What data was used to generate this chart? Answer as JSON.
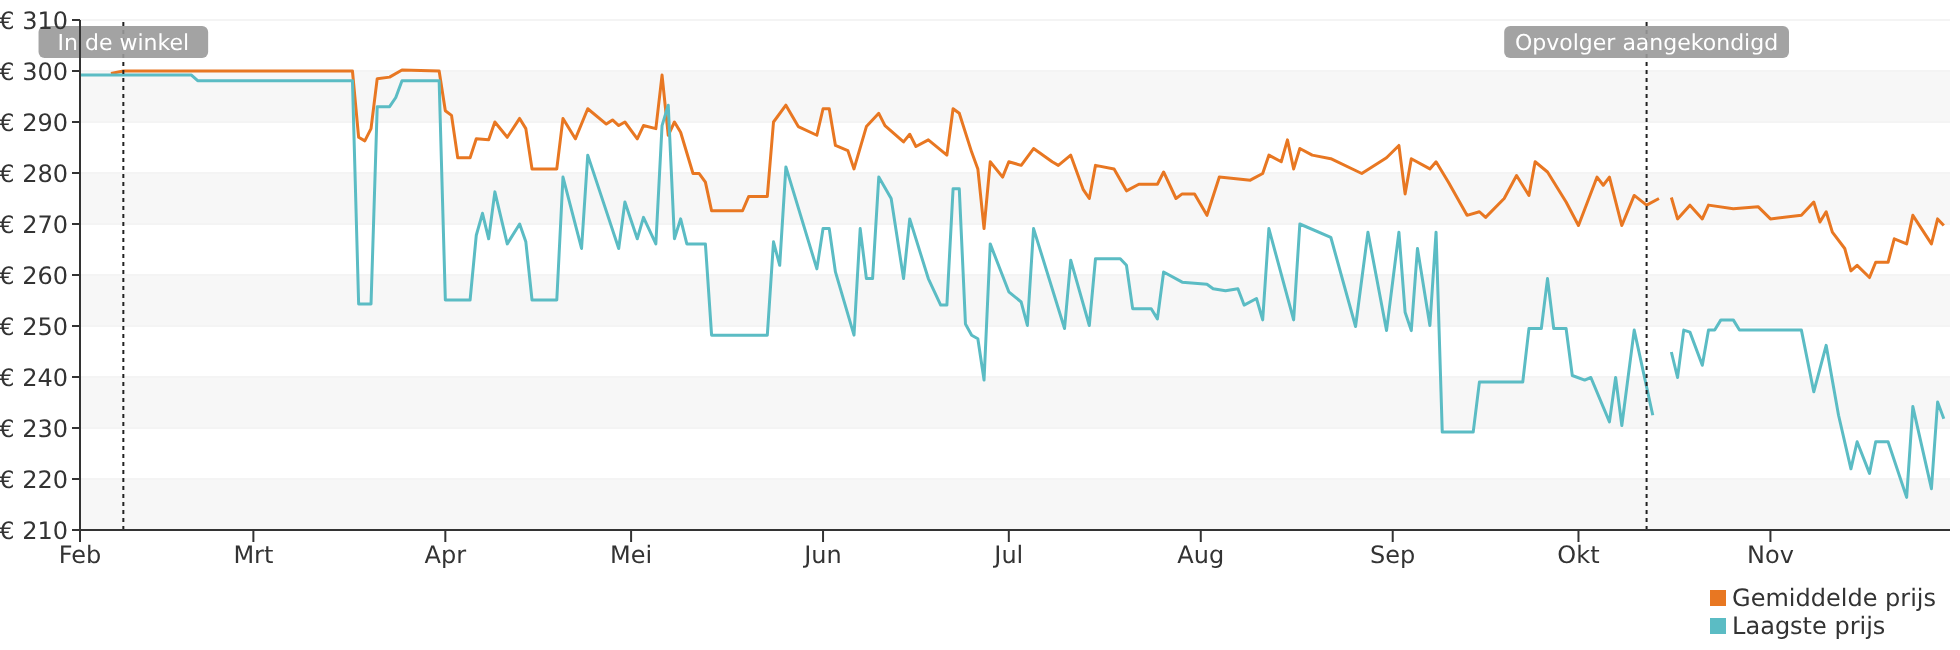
{
  "chart_data": {
    "type": "line",
    "xlim": [
      "--02-01",
      "--11-30"
    ],
    "xticks": [
      {
        "value": "--02-01",
        "label": "Feb"
      },
      {
        "value": "--03-01",
        "label": "Mrt"
      },
      {
        "value": "--04-01",
        "label": "Apr"
      },
      {
        "value": "--05-01",
        "label": "Mei"
      },
      {
        "value": "--06-01",
        "label": "Jun"
      },
      {
        "value": "--07-01",
        "label": "Jul"
      },
      {
        "value": "--08-01",
        "label": "Aug"
      },
      {
        "value": "--09-01",
        "label": "Sep"
      },
      {
        "value": "--10-01",
        "label": "Okt"
      },
      {
        "value": "--11-01",
        "label": "Nov"
      }
    ],
    "ylim": [
      210,
      310
    ],
    "yticks": [
      {
        "value": 210,
        "label": "€ 210"
      },
      {
        "value": 220,
        "label": "€ 220"
      },
      {
        "value": 230,
        "label": "€ 230"
      },
      {
        "value": 240,
        "label": "€ 240"
      },
      {
        "value": 250,
        "label": "€ 250"
      },
      {
        "value": 260,
        "label": "€ 260"
      },
      {
        "value": 270,
        "label": "€ 270"
      },
      {
        "value": 280,
        "label": "€ 280"
      },
      {
        "value": 290,
        "label": "€ 290"
      },
      {
        "value": 300,
        "label": "€ 300"
      },
      {
        "value": 310,
        "label": "€ 310"
      }
    ],
    "grid": "y",
    "legend": "bottom right",
    "marker": "none",
    "line_style": "solid",
    "ref_lines": [
      {
        "axis": "x",
        "value": "--02-08",
        "label": "In de winkel",
        "color": "#222222",
        "line_style": "dotted"
      },
      {
        "axis": "x",
        "value": "--10-12",
        "label": "Opvolger aangekondigd",
        "color": "#222222",
        "line_style": "dotted"
      }
    ],
    "series": [
      {
        "name": "Gemiddelde prijs",
        "color": "#e87722",
        "x": [
          "--02-06",
          "--02-08",
          "--03-17",
          "--03-18",
          "--03-19",
          "--03-20",
          "--03-21",
          "--03-23",
          "--03-25",
          "--03-31",
          "--04-01",
          "--04-02",
          "--04-03",
          "--04-05",
          "--04-06",
          "--04-08",
          "--04-09",
          "--04-11",
          "--04-13",
          "--04-14",
          "--04-15",
          "--04-19",
          "--04-20",
          "--04-22",
          "--04-24",
          "--04-27",
          "--04-28",
          "--04-29",
          "--04-30",
          "--05-02",
          "--05-03",
          "--05-05",
          "--05-06",
          "--05-07",
          "--05-08",
          "--05-09",
          "--05-11",
          "--05-12",
          "--05-13",
          "--05-14",
          "--05-19",
          "--05-20",
          "--05-23",
          "--05-24",
          "--05-26",
          "--05-28",
          "--05-31",
          "--06-01",
          "--06-02",
          "--06-03",
          "--06-05",
          "--06-06",
          "--06-08",
          "--06-10",
          "--06-11",
          "--06-14",
          "--06-15",
          "--06-16",
          "--06-18",
          "--06-21",
          "--06-22",
          "--06-23",
          "--06-25",
          "--06-26",
          "--06-27",
          "--06-28",
          "--06-30",
          "--07-01",
          "--07-03",
          "--07-05",
          "--07-08",
          "--07-09",
          "--07-11",
          "--07-13",
          "--07-14",
          "--07-15",
          "--07-18",
          "--07-20",
          "--07-22",
          "--07-25",
          "--07-26",
          "--07-28",
          "--07-29",
          "--07-31",
          "--08-02",
          "--08-04",
          "--08-09",
          "--08-11",
          "--08-12",
          "--08-14",
          "--08-15",
          "--08-16",
          "--08-17",
          "--08-19",
          "--08-22",
          "--08-27",
          "--08-31",
          "--09-02",
          "--09-03",
          "--09-04",
          "--09-07",
          "--09-08",
          "--09-10",
          "--09-13",
          "--09-15",
          "--09-16",
          "--09-19",
          "--09-21",
          "--09-23",
          "--09-24",
          "--09-26",
          "--09-29",
          "--10-01",
          "--10-04",
          "--10-05",
          "--10-06",
          "--10-08",
          "--10-10",
          "--10-12",
          "--10-14",
          "--10-15",
          "--10-16",
          "--10-17",
          "--10-19",
          "--10-21",
          "--10-22",
          "--10-26",
          "--10-30",
          "--11-01",
          "--11-06",
          "--11-08",
          "--11-09",
          "--11-10",
          "--11-11",
          "--11-13",
          "--11-14",
          "--11-15",
          "--11-17",
          "--11-18",
          "--11-20",
          "--11-21",
          "--11-23",
          "--11-24",
          "--11-27",
          "--11-28",
          "--11-29"
        ],
        "values": [
          299.5,
          300,
          300,
          287,
          286.3,
          288.7,
          298.5,
          298.8,
          300.2,
          300,
          292.2,
          291.3,
          283,
          283,
          286.7,
          286.5,
          290,
          287,
          290.7,
          288.7,
          280.8,
          280.8,
          290.7,
          286.7,
          292.6,
          289.6,
          290.4,
          289.3,
          290,
          286.7,
          289.3,
          288.7,
          299.2,
          287.4,
          290,
          288,
          279.9,
          279.9,
          278.2,
          272.6,
          272.6,
          275.4,
          275.4,
          290,
          293.3,
          289.1,
          287.4,
          292.6,
          292.6,
          285.4,
          284.4,
          280.8,
          289.1,
          291.7,
          289.3,
          286.1,
          287.6,
          285.2,
          286.5,
          283.5,
          292.6,
          291.7,
          284.1,
          280.8,
          269.1,
          282.2,
          279.2,
          282.2,
          281.5,
          284.8,
          282.2,
          281.5,
          283.5,
          276.8,
          275,
          281.5,
          280.8,
          276.5,
          277.8,
          277.8,
          280.2,
          275,
          275.9,
          275.9,
          271.7,
          279.2,
          278.6,
          279.9,
          283.5,
          282.2,
          286.5,
          280.8,
          284.8,
          283.5,
          282.8,
          279.9,
          283,
          285.4,
          275.9,
          282.8,
          280.8,
          282.2,
          278.2,
          271.7,
          272.4,
          271.3,
          275,
          279.5,
          275.6,
          282.2,
          280.2,
          274.3,
          269.7,
          279.2,
          277.6,
          279.2,
          269.7,
          275.6,
          273.7,
          275,
          null,
          275.2,
          271,
          273.7,
          271,
          273.7,
          273,
          273.4,
          271,
          271.7,
          274.3,
          270.4,
          272.4,
          268.4,
          265.2,
          260.8,
          261.9,
          259.5,
          262.5,
          262.5,
          267.1,
          266.1,
          271.7,
          266.1,
          271,
          269.7
        ]
      },
      {
        "name": "Laagste prijs",
        "color": "#5bbcc4",
        "x": [
          "--02-01",
          "--02-19",
          "--02-20",
          "--03-17",
          "--03-18",
          "--03-20",
          "--03-21",
          "--03-23",
          "--03-24",
          "--03-25",
          "--03-31",
          "--04-01",
          "--04-05",
          "--04-06",
          "--04-07",
          "--04-08",
          "--04-09",
          "--04-11",
          "--04-13",
          "--04-14",
          "--04-15",
          "--04-19",
          "--04-20",
          "--04-23",
          "--04-24",
          "--04-29",
          "--04-30",
          "--05-02",
          "--05-03",
          "--05-05",
          "--05-06",
          "--05-07",
          "--05-08",
          "--05-09",
          "--05-10",
          "--05-13",
          "--05-14",
          "--05-23",
          "--05-24",
          "--05-25",
          "--05-26",
          "--05-31",
          "--06-01",
          "--06-02",
          "--06-03",
          "--06-06",
          "--06-07",
          "--06-08",
          "--06-09",
          "--06-10",
          "--06-12",
          "--06-14",
          "--06-15",
          "--06-18",
          "--06-20",
          "--06-21",
          "--06-22",
          "--06-23",
          "--06-24",
          "--06-25",
          "--06-26",
          "--06-27",
          "--06-28",
          "--07-01",
          "--07-03",
          "--07-04",
          "--07-05",
          "--07-10",
          "--07-11",
          "--07-14",
          "--07-15",
          "--07-19",
          "--07-20",
          "--07-21",
          "--07-24",
          "--07-25",
          "--07-26",
          "--07-29",
          "--08-02",
          "--08-03",
          "--08-05",
          "--08-07",
          "--08-08",
          "--08-10",
          "--08-11",
          "--08-12",
          "--08-16",
          "--08-17",
          "--08-22",
          "--08-26",
          "--08-28",
          "--08-31",
          "--09-02",
          "--09-03",
          "--09-04",
          "--09-05",
          "--09-07",
          "--09-08",
          "--09-09",
          "--09-14",
          "--09-15",
          "--09-22",
          "--09-23",
          "--09-25",
          "--09-26",
          "--09-27",
          "--09-29",
          "--09-30",
          "--10-02",
          "--10-03",
          "--10-06",
          "--10-07",
          "--10-08",
          "--10-10",
          "--10-13",
          "--10-15",
          "--10-16",
          "--10-17",
          "--10-18",
          "--10-19",
          "--10-21",
          "--10-22",
          "--10-23",
          "--10-24",
          "--10-26",
          "--10-27",
          "--11-06",
          "--11-08",
          "--11-10",
          "--11-12",
          "--11-14",
          "--11-15",
          "--11-17",
          "--11-18",
          "--11-20",
          "--11-23",
          "--11-24",
          "--11-27",
          "--11-28",
          "--11-29"
        ],
        "values": [
          299.2,
          299.2,
          298.1,
          298.1,
          254.3,
          254.3,
          293,
          293,
          294.8,
          298.1,
          298.1,
          255.1,
          255.1,
          267.8,
          272.1,
          267.1,
          276.3,
          266.1,
          270,
          266.5,
          255.1,
          255.1,
          279.2,
          265.2,
          283.5,
          265.2,
          274.3,
          267.1,
          271.3,
          266.1,
          289.3,
          293.3,
          267.1,
          271,
          266.1,
          266.1,
          248.2,
          248.2,
          266.5,
          261.9,
          281.2,
          261.2,
          269.1,
          269.1,
          260.6,
          248.2,
          269.1,
          259.3,
          259.3,
          279.2,
          275,
          259.3,
          271,
          259.3,
          254.1,
          254.1,
          276.9,
          276.9,
          250.4,
          248.2,
          247.5,
          239.4,
          266.1,
          256.7,
          254.7,
          250.1,
          269.1,
          249.5,
          262.9,
          250.1,
          263.2,
          263.2,
          261.9,
          253.4,
          253.4,
          251.4,
          260.6,
          258.6,
          258.2,
          257.3,
          256.9,
          257.3,
          254.1,
          255.4,
          251.2,
          269.1,
          251.2,
          270,
          267.4,
          249.9,
          268.4,
          249.1,
          268.4,
          252.7,
          249.1,
          265.2,
          250.1,
          268.4,
          229.2,
          229.2,
          239,
          239,
          249.5,
          249.5,
          259.3,
          249.5,
          249.5,
          240.3,
          239.4,
          239.9,
          231.2,
          239.9,
          230.5,
          249.2,
          232.5,
          null,
          244.9,
          239.9,
          249.2,
          248.8,
          242.3,
          249.2,
          249.2,
          251.2,
          251.2,
          249.2,
          249.2,
          237.1,
          246.2,
          232.5,
          222,
          227.3,
          221.1,
          227.3,
          227.3,
          216.4,
          234.2,
          218.1,
          235.1,
          231.8
        ]
      }
    ]
  }
}
